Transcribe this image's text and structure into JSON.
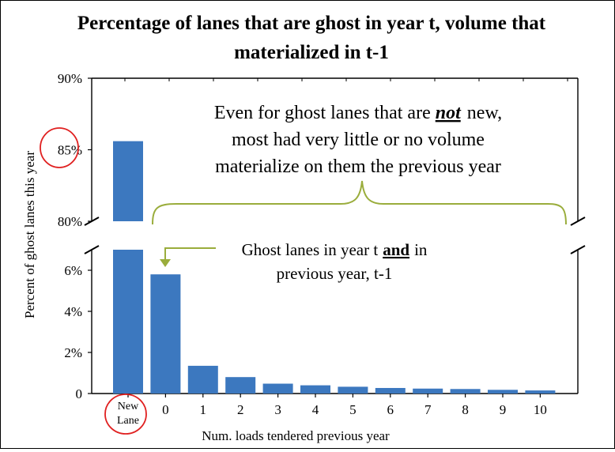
{
  "title_line1": "Percentage of lanes that are ghost in year t, volume that",
  "title_line2": "materialized in t-1",
  "chart_data": {
    "type": "bar",
    "title": "Percentage of lanes that are ghost in year t, volume that materialized in t-1",
    "xlabel": "Num. loads tendered previous year",
    "ylabel": "Percent of ghost lanes this year",
    "categories": [
      "New Lane",
      "0",
      "1",
      "2",
      "3",
      "4",
      "5",
      "6",
      "7",
      "8",
      "9",
      "10"
    ],
    "values": [
      85.6,
      5.8,
      1.35,
      0.8,
      0.48,
      0.4,
      0.33,
      0.27,
      0.24,
      0.22,
      0.18,
      0.15
    ],
    "axis_break": true,
    "upper_ylim": [
      80,
      90
    ],
    "upper_yticks": [
      "80%",
      "85%",
      "90%"
    ],
    "lower_ylim": [
      0,
      7
    ],
    "lower_yticks": [
      "0",
      "2%",
      "4%",
      "6%"
    ],
    "bar_color": "#3c78bf",
    "annotation_color": "#9aad3c",
    "highlight_color": "#e02020",
    "annotations": {
      "brace_line1": "Even for ghost lanes that are",
      "brace_emph": "not",
      "brace_line1_end": "new,",
      "brace_line2": "most had very little or no volume",
      "brace_line3": "materialize on them the previous year",
      "arrow_line1": "Ghost lanes in year t",
      "arrow_emph": "and",
      "arrow_line1_end": "in",
      "arrow_line2": "previous year, t-1"
    }
  }
}
